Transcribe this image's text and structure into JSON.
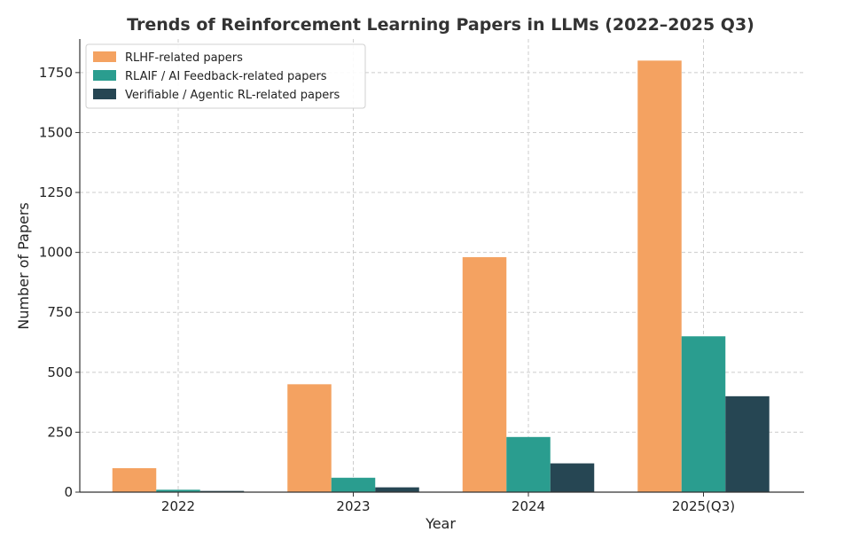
{
  "chart_data": {
    "type": "bar",
    "title": "Trends of Reinforcement Learning Papers in LLMs (2022–2025 Q3)",
    "xlabel": "Year",
    "ylabel": "Number of Papers",
    "categories": [
      "2022",
      "2023",
      "2024",
      "2025(Q3)"
    ],
    "series": [
      {
        "name": "RLHF-related papers",
        "color": "#F4A261",
        "values": [
          100,
          450,
          980,
          1800
        ]
      },
      {
        "name": "RLAIF / AI Feedback-related papers",
        "color": "#2A9D8F",
        "values": [
          10,
          60,
          230,
          650
        ]
      },
      {
        "name": "Verifiable / Agentic RL-related papers",
        "color": "#264653",
        "values": [
          5,
          20,
          120,
          400
        ]
      }
    ],
    "ylim": [
      0,
      1890
    ],
    "yticks": [
      0,
      250,
      500,
      750,
      1000,
      1250,
      1500,
      1750
    ],
    "grid": true,
    "legend_position": "top-left"
  }
}
